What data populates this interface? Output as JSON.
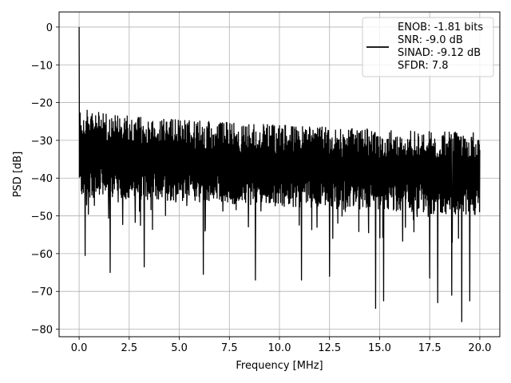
{
  "chart_data": {
    "type": "line",
    "title": "",
    "xlabel": "Frequency [MHz]",
    "ylabel": "PSD [dB]",
    "xlim": [
      -1,
      21
    ],
    "ylim": [
      -82,
      4
    ],
    "x_ticks": [
      0.0,
      2.5,
      5.0,
      7.5,
      10.0,
      12.5,
      15.0,
      17.5,
      20.0
    ],
    "x_tick_labels": [
      "0.0",
      "2.5",
      "5.0",
      "7.5",
      "10.0",
      "12.5",
      "15.0",
      "17.5",
      "20.0"
    ],
    "y_ticks": [
      0,
      -10,
      -20,
      -30,
      -40,
      -50,
      -60,
      -70,
      -80
    ],
    "y_tick_labels": [
      "0",
      "−10",
      "−20",
      "−30",
      "−40",
      "−50",
      "−60",
      "−70",
      "−80"
    ],
    "grid": true,
    "legend_placement": "top-right",
    "legend_lines": [
      "ENOB: -1.81 bits",
      "SNR: -9.0 dB",
      "SINAD: -9.12 dB",
      "SFDR: 7.8"
    ],
    "line_color": "#000000",
    "series": [
      {
        "description": "dense noise-like PSD trace",
        "x_range": [
          0,
          20
        ],
        "peak": {
          "x": 0.0,
          "y": 0.0
        },
        "upper_envelope_start": -21,
        "upper_envelope_end": -28,
        "lower_envelope_start": -45,
        "lower_envelope_end": -50,
        "deep_dips": [
          {
            "x": 0.3,
            "y": -60.5
          },
          {
            "x": 1.55,
            "y": -65
          },
          {
            "x": 3.25,
            "y": -63.5
          },
          {
            "x": 6.2,
            "y": -65.5
          },
          {
            "x": 8.8,
            "y": -67
          },
          {
            "x": 11.1,
            "y": -67
          },
          {
            "x": 12.5,
            "y": -66
          },
          {
            "x": 14.8,
            "y": -74.5
          },
          {
            "x": 15.2,
            "y": -72.5
          },
          {
            "x": 17.5,
            "y": -66.5
          },
          {
            "x": 17.9,
            "y": -73
          },
          {
            "x": 18.6,
            "y": -71
          },
          {
            "x": 19.1,
            "y": -78
          },
          {
            "x": 19.5,
            "y": -72.5
          }
        ]
      }
    ]
  }
}
